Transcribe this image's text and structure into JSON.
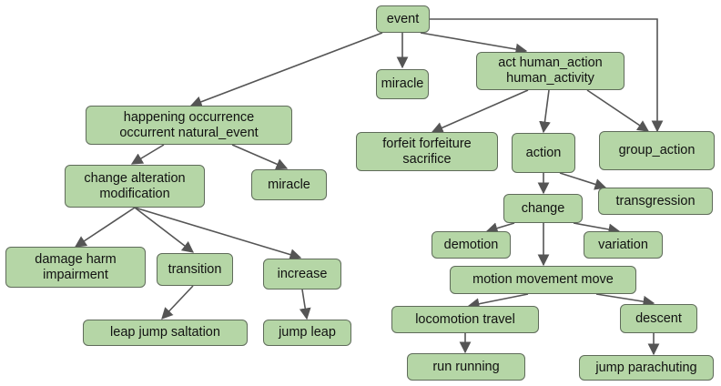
{
  "nodes": {
    "event": "event",
    "miracle_top": "miracle",
    "act_line1": "act human_action",
    "act_line2": "human_activity",
    "happening_line1": "happening occurrence",
    "happening_line2": "occurrent natural_event",
    "forfeit_line1": "forfeit forfeiture",
    "forfeit_line2": "sacrifice",
    "action": "action",
    "group_action": "group_action",
    "change_alt_line1": "change alteration",
    "change_alt_line2": "modification",
    "miracle_mid": "miracle",
    "transgression": "transgression",
    "change": "change",
    "demotion": "demotion",
    "variation": "variation",
    "damage_line1": "damage harm",
    "damage_line2": "impairment",
    "transition": "transition",
    "increase": "increase",
    "motion": "motion movement move",
    "leap_jump": "leap jump saltation",
    "jump_leap": "jump leap",
    "locomotion": "locomotion travel",
    "descent": "descent",
    "run_running": "run running",
    "jump_parachuting": "jump parachuting"
  },
  "colors": {
    "node_fill": "#b5d6a6",
    "node_border": "#5f6b5a",
    "edge": "#555555"
  }
}
